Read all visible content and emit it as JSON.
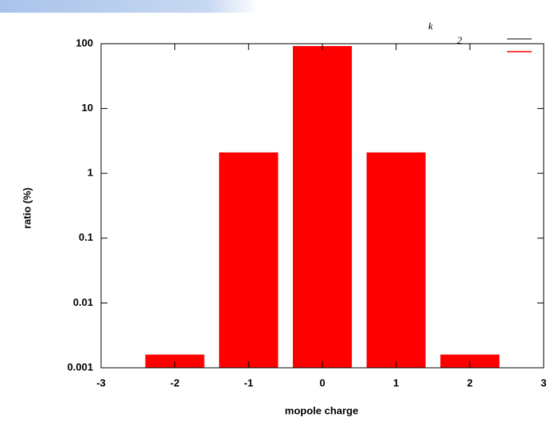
{
  "chart_data": {
    "type": "bar",
    "x": [
      -2,
      -1,
      0,
      1,
      2
    ],
    "values": [
      0.0016,
      2.1,
      92,
      2.1,
      0.0016
    ],
    "color": "#ff0000",
    "xlabel": "mopole charge",
    "ylabel": "ratio (%)",
    "xlim": [
      -3,
      3
    ],
    "xticks": [
      -3,
      -2,
      -1,
      0,
      1,
      2,
      3
    ],
    "ylim": [
      0.001,
      100
    ],
    "yticks": [
      0.001,
      0.01,
      0.1,
      1,
      10,
      100
    ],
    "ylog": true,
    "annotation": {
      "main": "k",
      "sub": "2"
    }
  }
}
